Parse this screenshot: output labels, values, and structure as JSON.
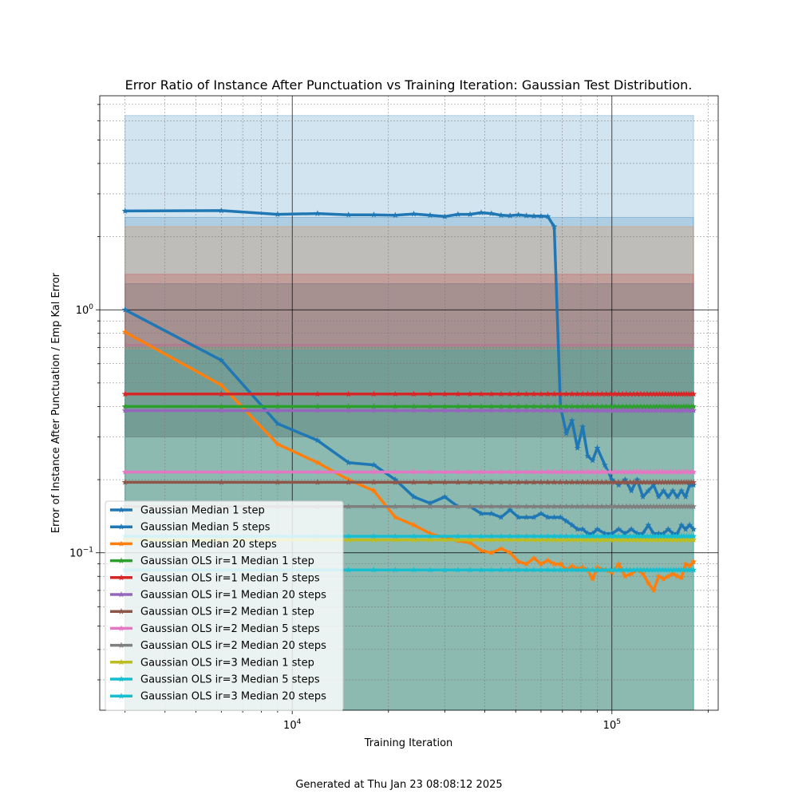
{
  "footer_text": "Generated at Thu Jan 23 08:08:12 2025",
  "chart_data": {
    "type": "line",
    "title": "Error Ratio of Instance After Punctuation vs Training Iteration: Gaussian Test Distribution.",
    "xlabel": "Training Iteration",
    "ylabel": "Error of Instance After Punctuation / Emp Kal Error",
    "xscale": "log",
    "yscale": "log",
    "xlim": [
      2500,
      215000
    ],
    "ylim": [
      0.0225,
      7.6
    ],
    "xticks": [
      {
        "value": 10000,
        "label": "10^4"
      },
      {
        "value": 100000,
        "label": "10^5"
      }
    ],
    "yticks": [
      {
        "value": 0.1,
        "label": "10^-1"
      },
      {
        "value": 1,
        "label": "10^0"
      }
    ],
    "grid": true,
    "legend_position": "lower-left",
    "series": [
      {
        "name": "Gaussian Median 1 step",
        "color": "#1f77b4",
        "x": [
          3000,
          6000,
          9000,
          12000,
          15000,
          18000,
          21000,
          24000,
          27000,
          30000,
          33000,
          36000,
          39000,
          42000,
          45000,
          48000,
          51000,
          54000,
          57000,
          60000,
          63000,
          66000,
          69000,
          72000,
          75000,
          78000,
          81000,
          84000,
          87000,
          90000,
          95000,
          100000,
          105000,
          110000,
          115000,
          120000,
          125000,
          130000,
          135000,
          140000,
          145000,
          150000,
          155000,
          160000,
          165000,
          170000,
          175000,
          180000
        ],
        "values": [
          2.55,
          2.56,
          2.47,
          2.49,
          2.46,
          2.46,
          2.45,
          2.48,
          2.45,
          2.42,
          2.47,
          2.47,
          2.51,
          2.49,
          2.45,
          2.44,
          2.46,
          2.44,
          2.43,
          2.43,
          2.42,
          2.2,
          0.4,
          0.31,
          0.35,
          0.27,
          0.33,
          0.25,
          0.24,
          0.27,
          0.23,
          0.2,
          0.19,
          0.2,
          0.18,
          0.2,
          0.17,
          0.18,
          0.19,
          0.17,
          0.18,
          0.17,
          0.18,
          0.17,
          0.18,
          0.17,
          0.19,
          0.19
        ],
        "band": [
          0.3,
          6.3
        ]
      },
      {
        "name": "Gaussian Median 5 steps",
        "color": "#1f77b4",
        "x": [
          3000,
          6000,
          9000,
          12000,
          15000,
          18000,
          21000,
          24000,
          27000,
          30000,
          33000,
          36000,
          39000,
          42000,
          45000,
          48000,
          51000,
          54000,
          57000,
          60000,
          63000,
          66000,
          69000,
          72000,
          75000,
          78000,
          81000,
          84000,
          87000,
          90000,
          95000,
          100000,
          105000,
          110000,
          115000,
          120000,
          125000,
          130000,
          135000,
          140000,
          145000,
          150000,
          155000,
          160000,
          165000,
          170000,
          175000,
          180000
        ],
        "values": [
          1.0,
          0.62,
          0.34,
          0.29,
          0.235,
          0.23,
          0.2,
          0.17,
          0.16,
          0.17,
          0.155,
          0.155,
          0.145,
          0.145,
          0.14,
          0.15,
          0.14,
          0.14,
          0.14,
          0.145,
          0.14,
          0.14,
          0.14,
          0.135,
          0.13,
          0.125,
          0.125,
          0.12,
          0.12,
          0.125,
          0.12,
          0.12,
          0.125,
          0.12,
          0.125,
          0.12,
          0.12,
          0.13,
          0.12,
          0.12,
          0.12,
          0.125,
          0.12,
          0.12,
          0.13,
          0.125,
          0.13,
          0.125
        ],
        "band": [
          0.3,
          2.4
        ]
      },
      {
        "name": "Gaussian Median 20 steps",
        "color": "#ff7f0e",
        "x": [
          3000,
          6000,
          9000,
          12000,
          15000,
          18000,
          21000,
          24000,
          27000,
          30000,
          33000,
          36000,
          39000,
          42000,
          45000,
          48000,
          51000,
          54000,
          57000,
          60000,
          63000,
          66000,
          69000,
          72000,
          75000,
          78000,
          81000,
          84000,
          87000,
          90000,
          95000,
          100000,
          105000,
          110000,
          115000,
          120000,
          125000,
          130000,
          135000,
          140000,
          145000,
          150000,
          155000,
          160000,
          165000,
          170000,
          175000,
          180000
        ],
        "values": [
          0.81,
          0.49,
          0.28,
          0.235,
          0.2,
          0.18,
          0.14,
          0.13,
          0.12,
          0.115,
          0.112,
          0.11,
          0.102,
          0.1,
          0.104,
          0.1,
          0.092,
          0.09,
          0.095,
          0.09,
          0.093,
          0.09,
          0.09,
          0.085,
          0.088,
          0.086,
          0.087,
          0.085,
          0.078,
          0.087,
          0.085,
          0.083,
          0.09,
          0.08,
          0.082,
          0.085,
          0.082,
          0.075,
          0.07,
          0.08,
          0.078,
          0.08,
          0.082,
          0.08,
          0.079,
          0.09,
          0.088,
          0.092
        ],
        "band": [
          0.3,
          2.2
        ]
      },
      {
        "name": "Gaussian OLS ir=1 Median 1 step",
        "color": "#2ca02c",
        "x": [
          3000,
          180000
        ],
        "values": [
          0.4,
          0.4
        ],
        "band": [
          0.3,
          1.28
        ]
      },
      {
        "name": "Gaussian OLS ir=1 Median 5 steps",
        "color": "#d62728",
        "x": [
          3000,
          180000
        ],
        "values": [
          0.45,
          0.45
        ],
        "band": [
          0.3,
          1.4
        ]
      },
      {
        "name": "Gaussian OLS ir=1 Median 20 steps",
        "color": "#9467bd",
        "x": [
          3000,
          180000
        ],
        "values": [
          0.385,
          0.385
        ],
        "band": [
          0.3,
          1.28
        ]
      },
      {
        "name": "Gaussian OLS ir=2 Median 1 step",
        "color": "#8c564b",
        "x": [
          3000,
          180000
        ],
        "values": [
          0.195,
          0.195
        ],
        "band": [
          0.0225,
          0.72
        ]
      },
      {
        "name": "Gaussian OLS ir=2 Median 5 steps",
        "color": "#e377c2",
        "x": [
          3000,
          180000
        ],
        "values": [
          0.215,
          0.215
        ],
        "band": [
          0.0225,
          0.72
        ]
      },
      {
        "name": "Gaussian OLS ir=2 Median 20 steps",
        "color": "#7f7f7f",
        "x": [
          3000,
          180000
        ],
        "values": [
          0.155,
          0.155
        ],
        "band": [
          0.0225,
          0.68
        ]
      },
      {
        "name": "Gaussian OLS ir=3 Median 1 step",
        "color": "#bcbd22",
        "x": [
          3000,
          180000
        ],
        "values": [
          0.113,
          0.113
        ],
        "band": [
          0.0225,
          0.7
        ]
      },
      {
        "name": "Gaussian OLS ir=3 Median 5 steps",
        "color": "#17becf",
        "x": [
          3000,
          180000
        ],
        "values": [
          0.117,
          0.117
        ],
        "band": [
          0.0225,
          0.7
        ]
      },
      {
        "name": "Gaussian OLS ir=3 Median 20 steps",
        "color": "#17becf",
        "x": [
          3000,
          180000
        ],
        "values": [
          0.085,
          0.085
        ],
        "band": [
          0.0225,
          0.68
        ]
      }
    ]
  }
}
